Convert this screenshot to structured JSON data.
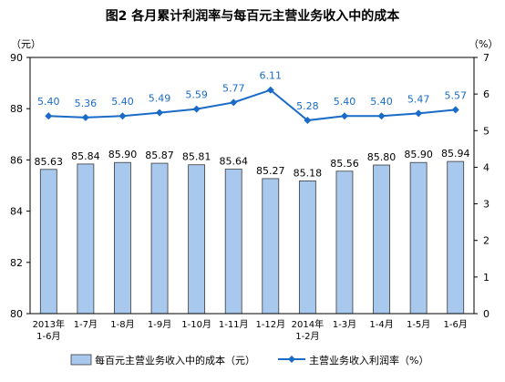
{
  "chart_data": {
    "type": "bar+line",
    "title": "图2  各月累计利润率与每百元主营业务收入中的成本",
    "y_left_unit": "（元）",
    "y_right_unit": "（%）",
    "categories": [
      [
        "2013年",
        "1-6月"
      ],
      [
        "1-7月"
      ],
      [
        "1-8月"
      ],
      [
        "1-9月"
      ],
      [
        "1-10月"
      ],
      [
        "1-11月"
      ],
      [
        "1-12月"
      ],
      [
        "2014年",
        "1-2月"
      ],
      [
        "1-3月"
      ],
      [
        "1-4月"
      ],
      [
        "1-5月"
      ],
      [
        "1-6月"
      ]
    ],
    "y_left": {
      "min": 80,
      "max": 90,
      "ticks": [
        80,
        82,
        84,
        86,
        88,
        90
      ]
    },
    "y_right": {
      "min": 0,
      "max": 7,
      "ticks": [
        0,
        1,
        2,
        3,
        4,
        5,
        6,
        7
      ]
    },
    "series": [
      {
        "name": "每百元主营业务收入中的成本（元）",
        "type": "bar",
        "axis": "left",
        "color": "#a9c8ee",
        "values": [
          85.63,
          85.84,
          85.9,
          85.87,
          85.81,
          85.64,
          85.27,
          85.18,
          85.56,
          85.8,
          85.9,
          85.94
        ],
        "labels": [
          "85.63",
          "85.84",
          "85.90",
          "85.87",
          "85.81",
          "85.64",
          "85.27",
          "85.18",
          "85.56",
          "85.80",
          "85.90",
          "85.94"
        ]
      },
      {
        "name": "主营业务收入利润率（%）",
        "type": "line",
        "axis": "right",
        "color": "#1a6bc8",
        "values": [
          5.4,
          5.36,
          5.4,
          5.49,
          5.59,
          5.77,
          6.11,
          5.28,
          5.4,
          5.4,
          5.47,
          5.57
        ],
        "labels": [
          "5.40",
          "5.36",
          "5.40",
          "5.49",
          "5.59",
          "5.77",
          "6.11",
          "5.28",
          "5.40",
          "5.40",
          "5.47",
          "5.57"
        ]
      }
    ],
    "legend_position": "bottom"
  }
}
